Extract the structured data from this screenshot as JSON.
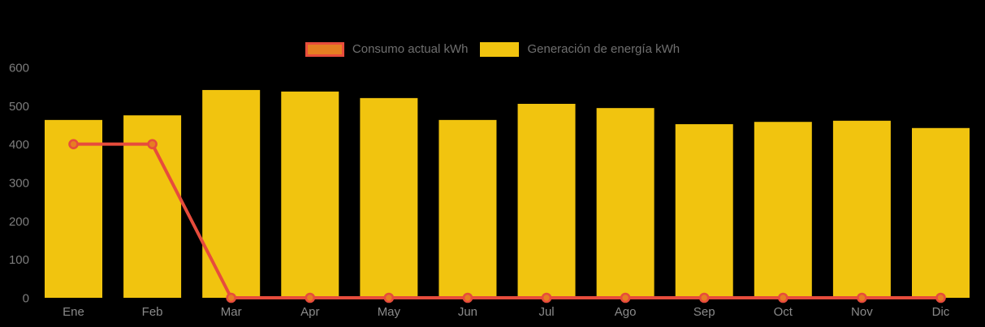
{
  "background_color": "#000000",
  "legend": {
    "items": [
      {
        "label": "Consumo actual kWh",
        "swatch_fill": "#E67E22",
        "swatch_border": "#E74C3C"
      },
      {
        "label": "Generación de energía kWh",
        "swatch_fill": "#F1C40F",
        "swatch_border": "#F1C40F"
      }
    ],
    "text_color": "#6F6F6F"
  },
  "chart_data": {
    "type": "bar",
    "title": "",
    "xlabel": "",
    "ylabel": "",
    "categories": [
      "Ene",
      "Feb",
      "Mar",
      "Apr",
      "May",
      "Jun",
      "Jul",
      "Ago",
      "Sep",
      "Oct",
      "Nov",
      "Dic"
    ],
    "series": [
      {
        "name": "Consumo actual kWh",
        "type": "line",
        "color": "#E74C3C",
        "marker_fill": "#E67E22",
        "values": [
          400,
          400,
          0,
          0,
          0,
          0,
          0,
          0,
          0,
          0,
          0,
          0
        ]
      },
      {
        "name": "Generación de energía kWh",
        "type": "bar",
        "color": "#F1C40F",
        "values": [
          463,
          475,
          541,
          537,
          520,
          463,
          505,
          494,
          452,
          458,
          461,
          442
        ]
      }
    ],
    "ylim": [
      0,
      600
    ],
    "yticks": [
      0,
      100,
      200,
      300,
      400,
      500,
      600
    ],
    "grid": false,
    "legend_position": "top",
    "axis_tick_color": "#7D7D7D",
    "x_tick_color": "#8A8A8A"
  }
}
